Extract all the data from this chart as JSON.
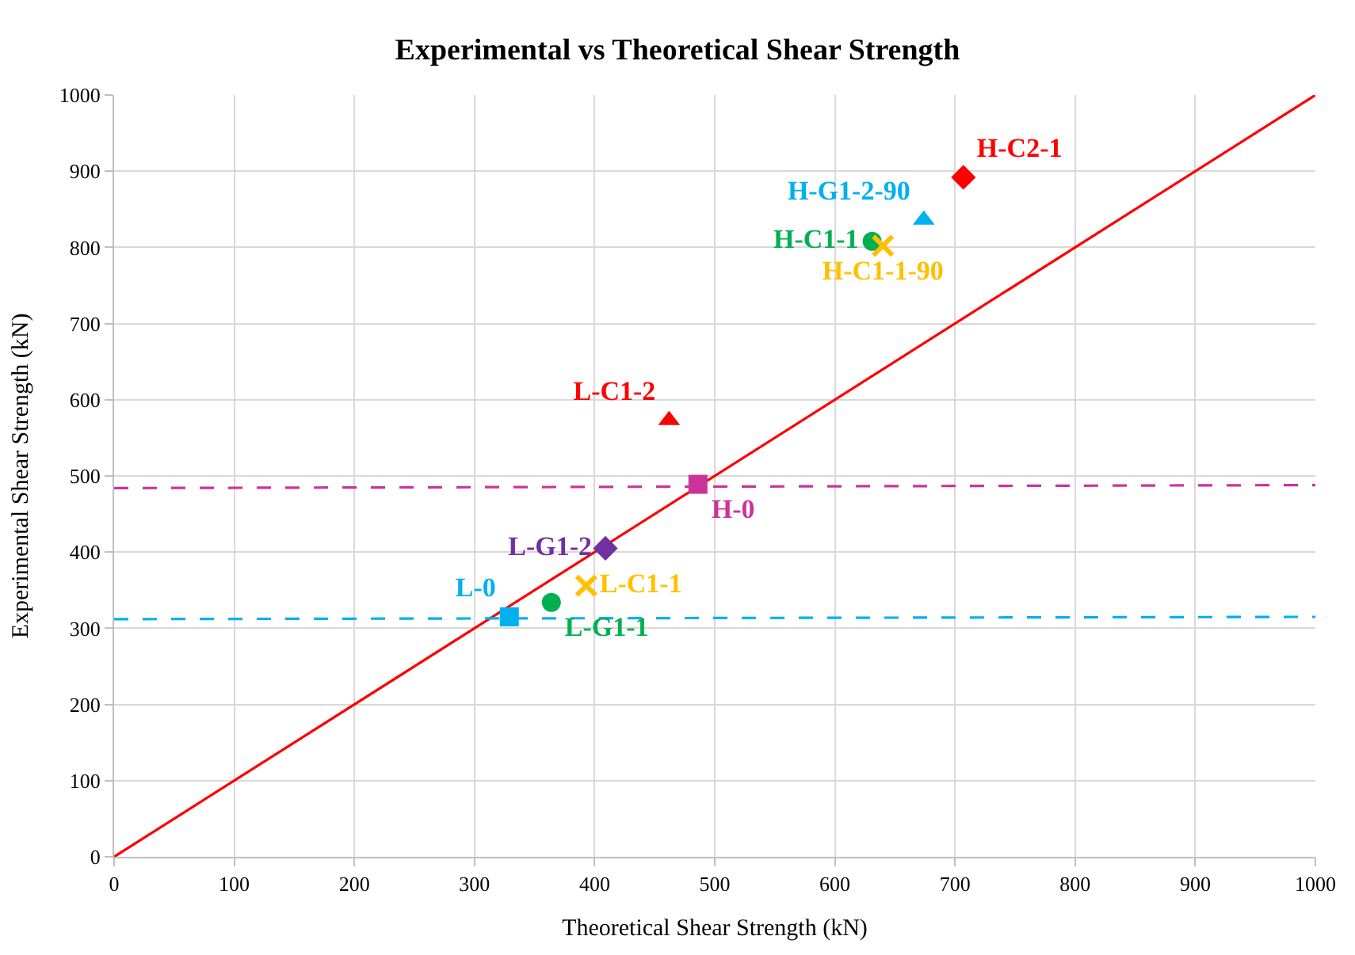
{
  "chart_data": {
    "type": "scatter",
    "title": "Experimental vs Theoretical Shear Strength",
    "xlabel": "Theoretical Shear Strength (kN)",
    "ylabel": "Experimental Shear Strength (kN)",
    "xlim": [
      0,
      1000
    ],
    "ylim": [
      0,
      1000
    ],
    "xticks": [
      0,
      100,
      200,
      300,
      400,
      500,
      600,
      700,
      800,
      900,
      1000
    ],
    "yticks": [
      0,
      100,
      200,
      300,
      400,
      500,
      600,
      700,
      800,
      900,
      1000
    ],
    "grid": true,
    "series": [
      {
        "type": "line",
        "color": "#ff0000",
        "x": [
          0,
          1000
        ],
        "values": [
          0,
          1000
        ],
        "marker": "none",
        "line_style": "solid"
      },
      {
        "type": "line",
        "color": "#00b0f0",
        "x": [
          0,
          1000
        ],
        "values": [
          312,
          315
        ],
        "marker": "none",
        "line_style": "dashed"
      },
      {
        "type": "line",
        "color": "#cc3399",
        "x": [
          0,
          1000
        ],
        "values": [
          484,
          488
        ],
        "marker": "none",
        "line_style": "dashed"
      },
      {
        "name": "L-0",
        "color": "#00b0f0",
        "x": [
          329
        ],
        "values": [
          315
        ],
        "marker": "square"
      },
      {
        "name": "L-G1-1",
        "color": "#00b050",
        "x": [
          364
        ],
        "values": [
          334
        ],
        "marker": "circle"
      },
      {
        "name": "L-C1-1",
        "color": "#ffc000",
        "x": [
          393
        ],
        "values": [
          356
        ],
        "marker": "cross"
      },
      {
        "name": "L-G1-2",
        "color": "#7030a0",
        "x": [
          409
        ],
        "values": [
          405
        ],
        "marker": "diamond"
      },
      {
        "name": "H-0",
        "color": "#cc3399",
        "x": [
          486
        ],
        "values": [
          489
        ],
        "marker": "square"
      },
      {
        "name": "L-C1-2",
        "color": "#ff0000",
        "x": [
          462
        ],
        "values": [
          573
        ],
        "marker": "triangle"
      },
      {
        "name": "H-C1-1",
        "color": "#00b050",
        "x": [
          631
        ],
        "values": [
          808
        ],
        "marker": "circle"
      },
      {
        "name": "H-C1-1-90",
        "color": "#ffc000",
        "x": [
          640
        ],
        "values": [
          802
        ],
        "marker": "cross"
      },
      {
        "name": "H-G1-2-90",
        "color": "#00b0f0",
        "x": [
          674
        ],
        "values": [
          836
        ],
        "marker": "triangle"
      },
      {
        "name": "H-C2-1",
        "color": "#ff0000",
        "x": [
          707
        ],
        "values": [
          892
        ],
        "marker": "diamond"
      }
    ]
  }
}
